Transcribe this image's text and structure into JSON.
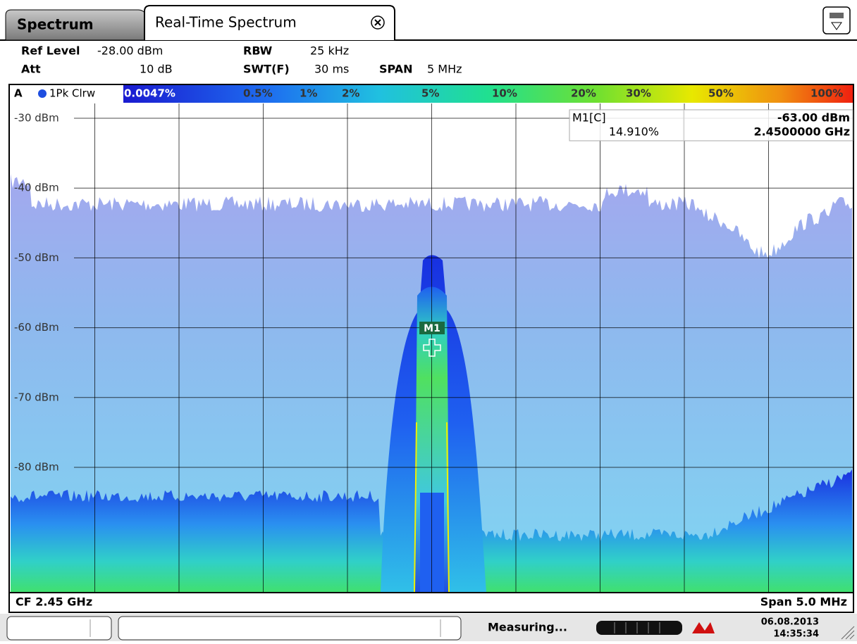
{
  "tabs": [
    "Spectrum",
    "Real-Time Spectrum"
  ],
  "settings": {
    "ref_level_label": "Ref Level",
    "ref_level": "-28.00 dBm",
    "att_label": "Att",
    "att": "10 dB",
    "rbw_label": "RBW",
    "rbw": "25 kHz",
    "swt_label": "SWT(F)",
    "swt": "30 ms",
    "span_label": "SPAN",
    "span": "5 MHz"
  },
  "trace": {
    "window": "A",
    "name": "1Pk Clrw"
  },
  "color_scale": [
    "0.0047%",
    "0.5%",
    "1%",
    "2%",
    "5%",
    "10%",
    "20%",
    "30%",
    "50%",
    "100%"
  ],
  "y_axis_labels": [
    "-30 dBm",
    "-40 dBm",
    "-50 dBm",
    "-60 dBm",
    "-70 dBm",
    "-80 dBm"
  ],
  "marker": {
    "name": "M1[C]",
    "level": "-63.00 dBm",
    "persistence": "14.910%",
    "frequency": "2.4500000 GHz",
    "label": "M1"
  },
  "footer": {
    "center": "CF 2.45 GHz",
    "span": "Span 5.0 MHz"
  },
  "status": {
    "message": "Measuring...",
    "date": "06.08.2013",
    "time": "14:35:34"
  }
}
